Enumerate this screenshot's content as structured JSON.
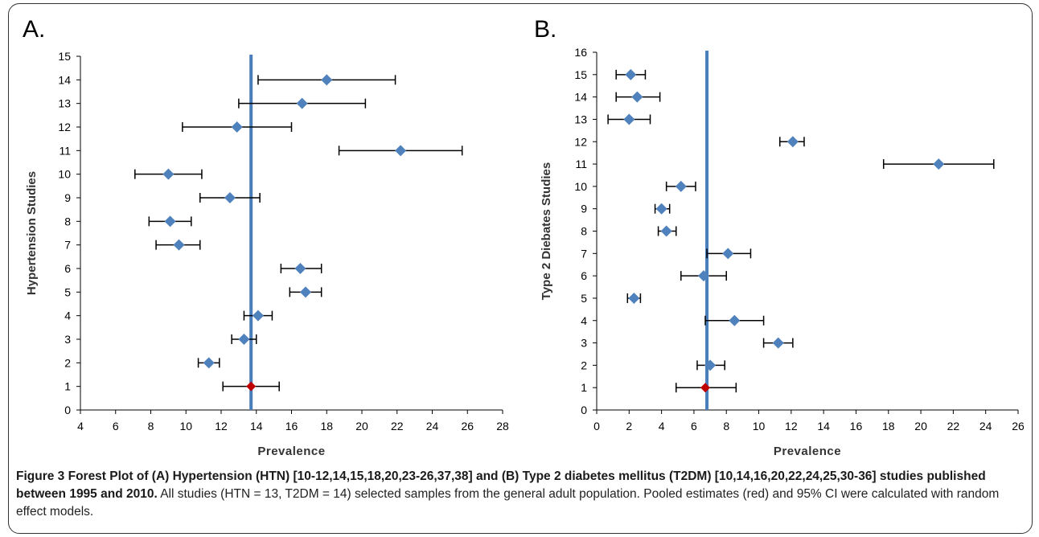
{
  "caption": {
    "bold": "Figure 3 Forest Plot of (A) Hypertension (HTN) [10-12,14,15,18,20,23-26,37,38] and (B) Type 2 diabetes mellitus (T2DM) [10,14,16,20,22,24,25,30-36] studies published between 1995 and 2010.",
    "text": " All studies (HTN = 13, T2DM = 14) selected samples from the general adult population. Pooled estimates (red) and 95% CI were calculated with random effect models."
  },
  "colors": {
    "study": "#4f81bd",
    "pooled": "#c00000",
    "line": "#4a7ebb",
    "axis": "#000000"
  },
  "chart_data": [
    {
      "type": "scatter",
      "panel_label": "A.",
      "title": "",
      "xlabel": "Prevalence",
      "ylabel": "Hypertension Studies",
      "xlim": [
        4,
        28
      ],
      "ylim": [
        0,
        15
      ],
      "x_ticks": [
        4,
        6,
        8,
        10,
        12,
        14,
        16,
        18,
        20,
        22,
        24,
        26,
        28
      ],
      "y_ticks": [
        0,
        1,
        2,
        3,
        4,
        5,
        6,
        7,
        8,
        9,
        10,
        11,
        12,
        13,
        14,
        15
      ],
      "pooled_line_x": 13.7,
      "points": [
        {
          "y": 1,
          "x": 13.7,
          "lo": 12.1,
          "hi": 15.3,
          "pooled": true
        },
        {
          "y": 2,
          "x": 11.3,
          "lo": 10.7,
          "hi": 11.9
        },
        {
          "y": 3,
          "x": 13.3,
          "lo": 12.6,
          "hi": 14.0
        },
        {
          "y": 4,
          "x": 14.1,
          "lo": 13.3,
          "hi": 14.9
        },
        {
          "y": 5,
          "x": 16.8,
          "lo": 15.9,
          "hi": 17.7
        },
        {
          "y": 6,
          "x": 16.5,
          "lo": 15.4,
          "hi": 17.7
        },
        {
          "y": 7,
          "x": 9.6,
          "lo": 8.3,
          "hi": 10.8
        },
        {
          "y": 8,
          "x": 9.1,
          "lo": 7.9,
          "hi": 10.3
        },
        {
          "y": 9,
          "x": 12.5,
          "lo": 10.8,
          "hi": 14.2
        },
        {
          "y": 10,
          "x": 9.0,
          "lo": 7.1,
          "hi": 10.9
        },
        {
          "y": 11,
          "x": 22.2,
          "lo": 18.7,
          "hi": 25.7
        },
        {
          "y": 12,
          "x": 12.9,
          "lo": 9.8,
          "hi": 16.0
        },
        {
          "y": 13,
          "x": 16.6,
          "lo": 13.0,
          "hi": 20.2
        },
        {
          "y": 14,
          "x": 18.0,
          "lo": 14.1,
          "hi": 21.9
        }
      ]
    },
    {
      "type": "scatter",
      "panel_label": "B.",
      "title": "",
      "xlabel": "Prevalence",
      "ylabel": "Type 2 Diebates Studies",
      "xlim": [
        0,
        26
      ],
      "ylim": [
        0,
        16
      ],
      "x_ticks": [
        0,
        2,
        4,
        6,
        8,
        10,
        12,
        14,
        16,
        18,
        20,
        22,
        24,
        26
      ],
      "y_ticks": [
        0,
        1,
        2,
        3,
        4,
        5,
        6,
        7,
        8,
        9,
        10,
        11,
        12,
        13,
        14,
        15,
        16
      ],
      "pooled_line_x": 6.8,
      "points": [
        {
          "y": 1,
          "x": 6.7,
          "lo": 4.9,
          "hi": 8.6,
          "pooled": true
        },
        {
          "y": 2,
          "x": 7.0,
          "lo": 6.2,
          "hi": 7.9
        },
        {
          "y": 3,
          "x": 11.2,
          "lo": 10.3,
          "hi": 12.1
        },
        {
          "y": 4,
          "x": 8.5,
          "lo": 6.7,
          "hi": 10.3
        },
        {
          "y": 5,
          "x": 2.3,
          "lo": 1.9,
          "hi": 2.7
        },
        {
          "y": 6,
          "x": 6.6,
          "lo": 5.2,
          "hi": 8.0
        },
        {
          "y": 7,
          "x": 8.1,
          "lo": 6.8,
          "hi": 9.5
        },
        {
          "y": 8,
          "x": 4.3,
          "lo": 3.8,
          "hi": 4.9
        },
        {
          "y": 9,
          "x": 4.0,
          "lo": 3.6,
          "hi": 4.5
        },
        {
          "y": 10,
          "x": 5.2,
          "lo": 4.3,
          "hi": 6.1
        },
        {
          "y": 11,
          "x": 21.1,
          "lo": 17.7,
          "hi": 24.5
        },
        {
          "y": 12,
          "x": 12.1,
          "lo": 11.3,
          "hi": 12.8
        },
        {
          "y": 13,
          "x": 2.0,
          "lo": 0.7,
          "hi": 3.3
        },
        {
          "y": 14,
          "x": 2.5,
          "lo": 1.2,
          "hi": 3.9
        },
        {
          "y": 15,
          "x": 2.1,
          "lo": 1.2,
          "hi": 3.0
        }
      ]
    }
  ]
}
